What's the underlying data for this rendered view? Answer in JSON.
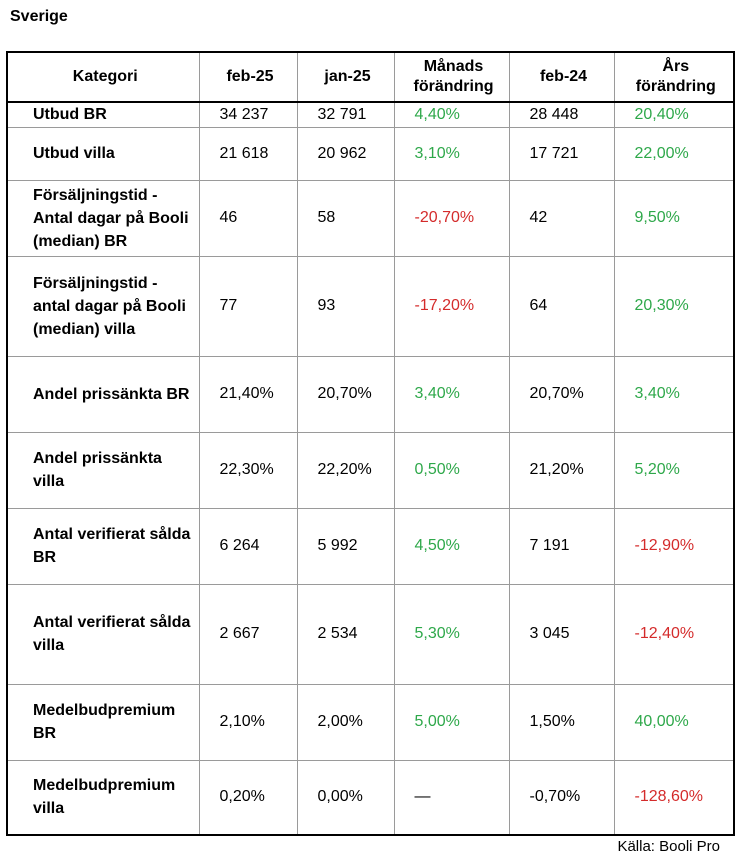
{
  "heading": "Sverige",
  "source": "Källa: Booli Pro",
  "colors": {
    "positive": "#2ea84a",
    "negative": "#d42b2b"
  },
  "table": {
    "headers": [
      "Kategori",
      "feb-25",
      "jan-25",
      "Månads förändring",
      "feb-24",
      "Års förändring"
    ],
    "rows": [
      {
        "kategori": "Utbud BR",
        "feb25": "34 237",
        "jan25": "32 791",
        "manads": "4,40%",
        "manads_trend": "pos",
        "feb24": "28 448",
        "ars": "20,40%",
        "ars_trend": "pos"
      },
      {
        "kategori": "Utbud villa",
        "feb25": "21 618",
        "jan25": "20 962",
        "manads": "3,10%",
        "manads_trend": "pos",
        "feb24": "17 721",
        "ars": "22,00%",
        "ars_trend": "pos"
      },
      {
        "kategori": "Försäljningstid - Antal dagar på Booli (median) BR",
        "feb25": "46",
        "jan25": "58",
        "manads": "-20,70%",
        "manads_trend": "neg",
        "feb24": "42",
        "ars": "9,50%",
        "ars_trend": "pos"
      },
      {
        "kategori": "Försäljningstid - antal dagar på Booli (median) villa",
        "feb25": "77",
        "jan25": "93",
        "manads": "-17,20%",
        "manads_trend": "neg",
        "feb24": "64",
        "ars": "20,30%",
        "ars_trend": "pos"
      },
      {
        "kategori": "Andel prissänkta BR",
        "feb25": "21,40%",
        "jan25": "20,70%",
        "manads": "3,40%",
        "manads_trend": "pos",
        "feb24": "20,70%",
        "ars": "3,40%",
        "ars_trend": "pos"
      },
      {
        "kategori": "Andel prissänkta villa",
        "feb25": "22,30%",
        "jan25": "22,20%",
        "manads": "0,50%",
        "manads_trend": "pos",
        "feb24": "21,20%",
        "ars": "5,20%",
        "ars_trend": "pos"
      },
      {
        "kategori": "Antal verifierat sålda BR",
        "feb25": "6 264",
        "jan25": "5 992",
        "manads": "4,50%",
        "manads_trend": "pos",
        "feb24": "7 191",
        "ars": "-12,90%",
        "ars_trend": "neg"
      },
      {
        "kategori": "Antal verifierat sålda villa",
        "feb25": "2 667",
        "jan25": "2 534",
        "manads": "5,30%",
        "manads_trend": "pos",
        "feb24": "3 045",
        "ars": "-12,40%",
        "ars_trend": "neg"
      },
      {
        "kategori": "Medelbudpremium BR",
        "feb25": "2,10%",
        "jan25": "2,00%",
        "manads": "5,00%",
        "manads_trend": "pos",
        "feb24": "1,50%",
        "ars": "40,00%",
        "ars_trend": "pos"
      },
      {
        "kategori": "Medelbudpremium villa",
        "feb25": "0,20%",
        "jan25": "0,00%",
        "manads": "—",
        "manads_trend": "neu",
        "feb24": "-0,70%",
        "ars": "-128,60%",
        "ars_trend": "neg"
      }
    ]
  }
}
